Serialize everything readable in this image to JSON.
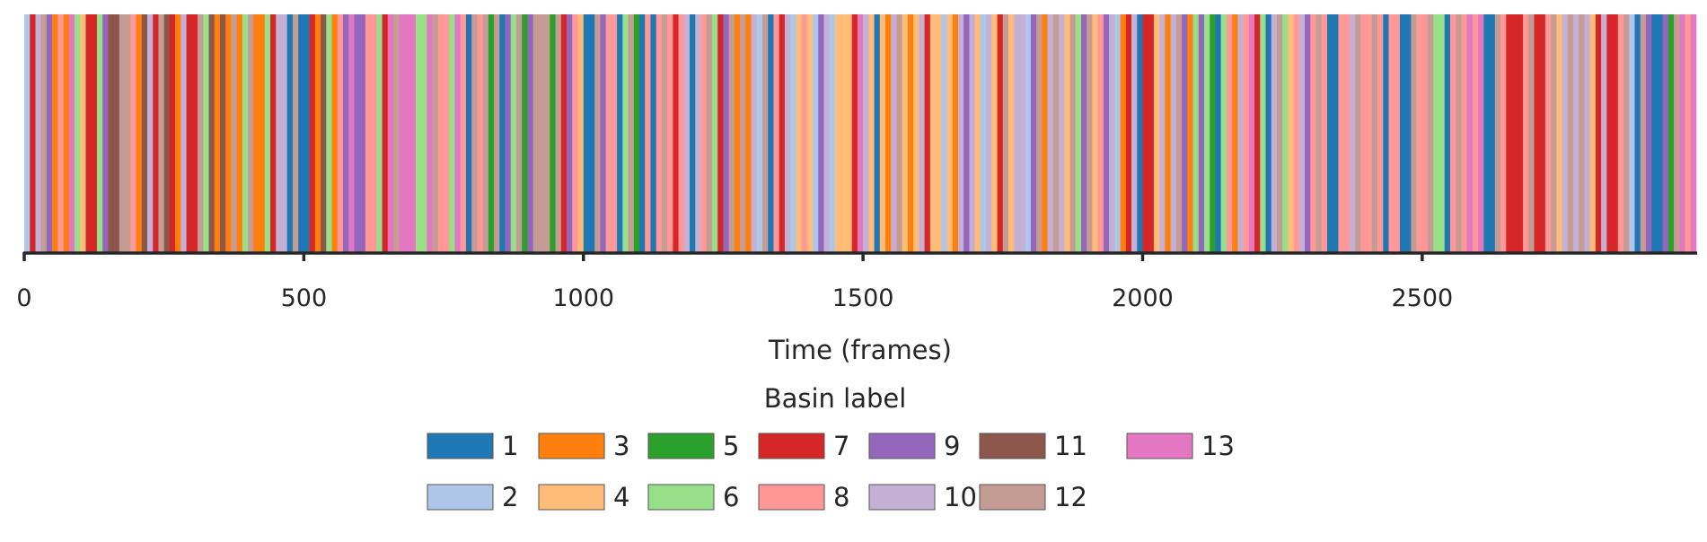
{
  "chart_data": {
    "type": "state-sequence-bar",
    "title": "",
    "xlabel": "Time (frames)",
    "ylabel": "",
    "xlim": [
      0,
      2990
    ],
    "xticks": [
      0,
      500,
      1000,
      1500,
      2000,
      2500
    ],
    "xtick_labels": [
      "0",
      "500",
      "1000",
      "1500",
      "2000",
      "2500"
    ],
    "grid": false,
    "legend": {
      "title": "Basin label",
      "placement": "bottom-center",
      "entries": [
        "1",
        "2",
        "3",
        "4",
        "5",
        "6",
        "7",
        "8",
        "9",
        "10",
        "11",
        "12",
        "13"
      ]
    },
    "colors": {
      "1": "#1f77b4",
      "2": "#aec7e8",
      "3": "#ff7f0e",
      "4": "#ffbb78",
      "5": "#2ca02c",
      "6": "#98df8a",
      "7": "#d62728",
      "8": "#ff9896",
      "9": "#9467bd",
      "10": "#c5b0d5",
      "11": "#8c564b",
      "12": "#c49c94",
      "13": "#e377c2"
    },
    "n_frames": 2990,
    "segments_start_label": [
      [
        0,
        2
      ],
      [
        10,
        7
      ],
      [
        20,
        10
      ],
      [
        30,
        12
      ],
      [
        40,
        9
      ],
      [
        50,
        3
      ],
      [
        60,
        8
      ],
      [
        70,
        3
      ],
      [
        80,
        13
      ],
      [
        90,
        6
      ],
      [
        100,
        4
      ],
      [
        110,
        7
      ],
      [
        130,
        6
      ],
      [
        140,
        9
      ],
      [
        150,
        11
      ],
      [
        170,
        12
      ],
      [
        190,
        8
      ],
      [
        200,
        3
      ],
      [
        210,
        11
      ],
      [
        220,
        10
      ],
      [
        230,
        7
      ],
      [
        240,
        12
      ],
      [
        250,
        11
      ],
      [
        260,
        7
      ],
      [
        270,
        3
      ],
      [
        280,
        10
      ],
      [
        290,
        7
      ],
      [
        310,
        12
      ],
      [
        320,
        6
      ],
      [
        330,
        11
      ],
      [
        340,
        3
      ],
      [
        350,
        11
      ],
      [
        360,
        3
      ],
      [
        370,
        12
      ],
      [
        380,
        3
      ],
      [
        390,
        6
      ],
      [
        400,
        12
      ],
      [
        410,
        3
      ],
      [
        430,
        6
      ],
      [
        440,
        7
      ],
      [
        450,
        10
      ],
      [
        470,
        1
      ],
      [
        480,
        12
      ],
      [
        490,
        1
      ],
      [
        510,
        7
      ],
      [
        520,
        3
      ],
      [
        530,
        11
      ],
      [
        540,
        6
      ],
      [
        550,
        3
      ],
      [
        560,
        8
      ],
      [
        570,
        9
      ],
      [
        580,
        13
      ],
      [
        590,
        9
      ],
      [
        610,
        8
      ],
      [
        630,
        6
      ],
      [
        640,
        7
      ],
      [
        650,
        13
      ],
      [
        660,
        12
      ],
      [
        670,
        13
      ],
      [
        700,
        6
      ],
      [
        720,
        13
      ],
      [
        730,
        12
      ],
      [
        740,
        8
      ],
      [
        760,
        6
      ],
      [
        770,
        13
      ],
      [
        780,
        8
      ],
      [
        790,
        1
      ],
      [
        800,
        12
      ],
      [
        810,
        8
      ],
      [
        820,
        12
      ],
      [
        830,
        5
      ],
      [
        840,
        12
      ],
      [
        850,
        1
      ],
      [
        860,
        9
      ],
      [
        870,
        6
      ],
      [
        880,
        12
      ],
      [
        890,
        5
      ],
      [
        900,
        9
      ],
      [
        910,
        12
      ],
      [
        940,
        5
      ],
      [
        950,
        12
      ],
      [
        960,
        7
      ],
      [
        970,
        9
      ],
      [
        980,
        8
      ],
      [
        990,
        4
      ],
      [
        1000,
        1
      ],
      [
        1020,
        12
      ],
      [
        1030,
        9
      ],
      [
        1040,
        8
      ],
      [
        1060,
        1
      ],
      [
        1070,
        6
      ],
      [
        1080,
        12
      ],
      [
        1090,
        5
      ],
      [
        1100,
        1
      ],
      [
        1110,
        8
      ],
      [
        1120,
        1
      ],
      [
        1130,
        8
      ],
      [
        1140,
        12
      ],
      [
        1150,
        8
      ],
      [
        1160,
        7
      ],
      [
        1170,
        8
      ],
      [
        1180,
        10
      ],
      [
        1190,
        1
      ],
      [
        1200,
        10
      ],
      [
        1210,
        8
      ],
      [
        1220,
        12
      ],
      [
        1230,
        6
      ],
      [
        1240,
        7
      ],
      [
        1250,
        9
      ],
      [
        1260,
        12
      ],
      [
        1270,
        3
      ],
      [
        1280,
        12
      ],
      [
        1290,
        3
      ],
      [
        1300,
        10
      ],
      [
        1310,
        2
      ],
      [
        1320,
        12
      ],
      [
        1330,
        1
      ],
      [
        1340,
        8
      ],
      [
        1350,
        7
      ],
      [
        1360,
        10
      ],
      [
        1370,
        2
      ],
      [
        1380,
        4
      ],
      [
        1390,
        8
      ],
      [
        1400,
        4
      ],
      [
        1410,
        2
      ],
      [
        1420,
        9
      ],
      [
        1430,
        10
      ],
      [
        1440,
        2
      ],
      [
        1450,
        4
      ],
      [
        1480,
        7
      ],
      [
        1490,
        13
      ],
      [
        1500,
        10
      ],
      [
        1510,
        4
      ],
      [
        1520,
        1
      ],
      [
        1530,
        4
      ],
      [
        1540,
        3
      ],
      [
        1550,
        10
      ],
      [
        1560,
        12
      ],
      [
        1570,
        4
      ],
      [
        1580,
        3
      ],
      [
        1590,
        4
      ],
      [
        1600,
        10
      ],
      [
        1610,
        7
      ],
      [
        1620,
        4
      ],
      [
        1640,
        2
      ],
      [
        1650,
        4
      ],
      [
        1660,
        3
      ],
      [
        1670,
        10
      ],
      [
        1680,
        9
      ],
      [
        1690,
        10
      ],
      [
        1700,
        4
      ],
      [
        1710,
        2
      ],
      [
        1720,
        10
      ],
      [
        1730,
        4
      ],
      [
        1740,
        7
      ],
      [
        1750,
        12
      ],
      [
        1760,
        4
      ],
      [
        1770,
        10
      ],
      [
        1790,
        2
      ],
      [
        1800,
        9
      ],
      [
        1810,
        12
      ],
      [
        1820,
        3
      ],
      [
        1830,
        10
      ],
      [
        1840,
        12
      ],
      [
        1850,
        10
      ],
      [
        1860,
        4
      ],
      [
        1870,
        12
      ],
      [
        1880,
        6
      ],
      [
        1890,
        9
      ],
      [
        1900,
        12
      ],
      [
        1910,
        4
      ],
      [
        1920,
        8
      ],
      [
        1930,
        9
      ],
      [
        1940,
        10
      ],
      [
        1950,
        2
      ],
      [
        1960,
        3
      ],
      [
        1970,
        7
      ],
      [
        1980,
        10
      ],
      [
        1990,
        1
      ],
      [
        2000,
        7
      ],
      [
        2020,
        4
      ],
      [
        2030,
        10
      ],
      [
        2040,
        3
      ],
      [
        2050,
        10
      ],
      [
        2060,
        12
      ],
      [
        2070,
        9
      ],
      [
        2080,
        3
      ],
      [
        2090,
        6
      ],
      [
        2100,
        9
      ],
      [
        2110,
        6
      ],
      [
        2120,
        5
      ],
      [
        2130,
        1
      ],
      [
        2140,
        6
      ],
      [
        2150,
        8
      ],
      [
        2160,
        3
      ],
      [
        2170,
        10
      ],
      [
        2180,
        8
      ],
      [
        2190,
        13
      ],
      [
        2200,
        7
      ],
      [
        2210,
        6
      ],
      [
        2220,
        1
      ],
      [
        2230,
        10
      ],
      [
        2240,
        12
      ],
      [
        2250,
        6
      ],
      [
        2260,
        4
      ],
      [
        2270,
        8
      ],
      [
        2280,
        10
      ],
      [
        2290,
        9
      ],
      [
        2300,
        8
      ],
      [
        2310,
        12
      ],
      [
        2320,
        8
      ],
      [
        2330,
        1
      ],
      [
        2350,
        8
      ],
      [
        2370,
        10
      ],
      [
        2380,
        12
      ],
      [
        2390,
        8
      ],
      [
        2410,
        12
      ],
      [
        2420,
        8
      ],
      [
        2430,
        1
      ],
      [
        2440,
        8
      ],
      [
        2460,
        1
      ],
      [
        2480,
        12
      ],
      [
        2490,
        8
      ],
      [
        2510,
        12
      ],
      [
        2520,
        6
      ],
      [
        2540,
        1
      ],
      [
        2550,
        8
      ],
      [
        2560,
        12
      ],
      [
        2570,
        8
      ],
      [
        2580,
        13
      ],
      [
        2590,
        8
      ],
      [
        2600,
        13
      ],
      [
        2610,
        1
      ],
      [
        2630,
        12
      ],
      [
        2640,
        8
      ],
      [
        2650,
        7
      ],
      [
        2680,
        8
      ],
      [
        2690,
        12
      ],
      [
        2700,
        7
      ],
      [
        2720,
        8
      ],
      [
        2730,
        12
      ],
      [
        2740,
        4
      ],
      [
        2750,
        10
      ],
      [
        2760,
        12
      ],
      [
        2770,
        10
      ],
      [
        2780,
        12
      ],
      [
        2790,
        10
      ],
      [
        2800,
        4
      ],
      [
        2810,
        7
      ],
      [
        2820,
        10
      ],
      [
        2830,
        7
      ],
      [
        2850,
        8
      ],
      [
        2860,
        12
      ],
      [
        2870,
        2
      ],
      [
        2880,
        1
      ],
      [
        2890,
        12
      ],
      [
        2900,
        9
      ],
      [
        2910,
        1
      ],
      [
        2930,
        9
      ],
      [
        2940,
        5
      ],
      [
        2950,
        12
      ],
      [
        2960,
        13
      ],
      [
        2970,
        8
      ],
      [
        2980,
        13
      ]
    ]
  }
}
